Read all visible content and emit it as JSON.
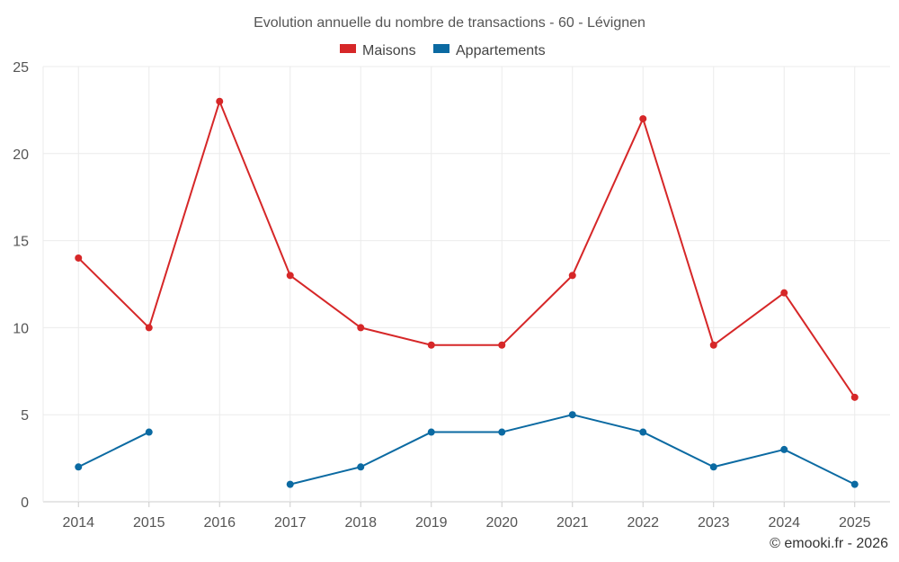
{
  "chart_data": {
    "type": "line",
    "title": "Evolution annuelle du nombre de transactions - 60 - Lévignen",
    "categories": [
      "2014",
      "2015",
      "2016",
      "2017",
      "2018",
      "2019",
      "2020",
      "2021",
      "2022",
      "2023",
      "2024",
      "2025"
    ],
    "series": [
      {
        "name": "Maisons",
        "color": "#d62728",
        "values": [
          14,
          10,
          23,
          13,
          10,
          9,
          9,
          13,
          22,
          9,
          12,
          6
        ]
      },
      {
        "name": "Appartements",
        "color": "#0b6aa2",
        "values": [
          2,
          4,
          null,
          1,
          2,
          4,
          4,
          5,
          4,
          2,
          3,
          1
        ]
      }
    ],
    "ylim": [
      0,
      25
    ],
    "yticks": [
      0,
      5,
      10,
      15,
      20,
      25
    ],
    "xlabel": "",
    "ylabel": "",
    "grid": true,
    "legend": "top-center"
  },
  "credit": "© emooki.fr - 2026"
}
